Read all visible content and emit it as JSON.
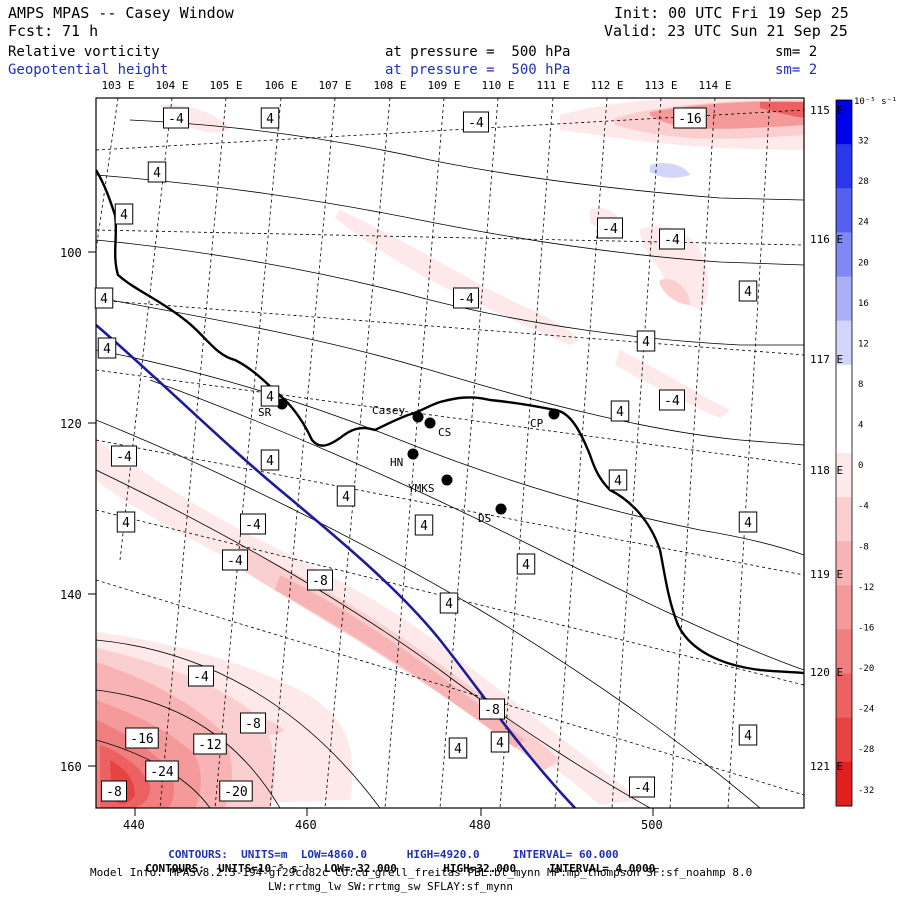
{
  "header": {
    "model": "AMPS MPAS -- Casey Window",
    "fcst_label": "Fcst:",
    "fcst_value": "71 h",
    "init": "Init: 00 UTC Fri 19 Sep 25",
    "valid": "Valid: 23 UTC Sun 21 Sep 25",
    "field1": "Relative vorticity",
    "field1_level": "at pressure =  500 hPa",
    "field1_sm": "sm= 2",
    "field2": "Geopotential height",
    "field2_level": "at pressure =  500 hPa",
    "field2_sm": "sm= 2"
  },
  "longitude_labels_top": [
    "103 E",
    "104 E",
    "105 E",
    "106 E",
    "107 E",
    "108 E",
    "109 E",
    "110 E",
    "111 E",
    "112 E",
    "113 E",
    "114 E"
  ],
  "longitude_labels_right": [
    "115 E",
    "116 E",
    "117 E",
    "118 E",
    "119 E",
    "120 E",
    "121 E"
  ],
  "y_axis_labels": [
    "100",
    "120",
    "140",
    "160"
  ],
  "x_axis_labels": [
    "440",
    "460",
    "480",
    "500"
  ],
  "stations": [
    {
      "id": "SR",
      "label": "SR"
    },
    {
      "id": "Casey",
      "label": "Casey"
    },
    {
      "id": "CS",
      "label": "CS"
    },
    {
      "id": "HN",
      "label": "HN"
    },
    {
      "id": "YMKS",
      "label": "YMKS"
    },
    {
      "id": "DS",
      "label": "DS"
    },
    {
      "id": "CP",
      "label": "CP"
    }
  ],
  "contour_labels": {
    "height_4": "4",
    "vort_neg4": "-4",
    "vort_neg8": "-8",
    "vort_neg12": "-12",
    "vort_neg16": "-16",
    "vort_neg20": "-20",
    "vort_neg24": "-24"
  },
  "colorbar": {
    "unit": "10⁻⁵ s⁻¹",
    "ticks": [
      "32",
      "28",
      "24",
      "20",
      "16",
      "12",
      "8",
      "4",
      "0",
      "-4",
      "-8",
      "-12",
      "-16",
      "-20",
      "-24",
      "-28",
      "-32"
    ],
    "colors": {
      "pos32": "#0000e6",
      "pos28": "#2a38ea",
      "pos24": "#5560ee",
      "pos20": "#7f88f3",
      "pos16": "#a9b0f7",
      "pos12": "#d2d6fb",
      "pos4": "#ffffff",
      "neg4": "#fde9e9",
      "neg8": "#fbcfcf",
      "neg12": "#f8b4b4",
      "neg16": "#f49a9a",
      "neg20": "#f07f7f",
      "neg24": "#ec6161",
      "neg28": "#e84343",
      "neg32": "#e01f1f"
    }
  },
  "footer": {
    "line1_prefix": "CONTOURS:  UNITS=m  LOW=",
    "line1_low": "4860.0",
    "line1_high_label": "HIGH=",
    "line1_high": "4920.0",
    "line1_interval_label": "INTERVAL=",
    "line1_interval": "60.000",
    "line2_prefix": "CONTOURS:  UNITS=10⁻⁵ s⁻¹  LOW=",
    "line2_low": "-32.000",
    "line2_high_label": "HIGH=",
    "line2_high": "32.000",
    "line2_interval_label": "INTERVAL=",
    "line2_interval": "4.0000",
    "line3": "Model Info: MPASv8.2.3-194-gf29cd82c CU:cu_grell_freitas PBL:bl_mynn MP:mp_thompson SF:sf_noahmp 8.0",
    "line4": "LW:rrtmg_lw SW:rrtmg_sw SFLAY:sf_mynn"
  }
}
